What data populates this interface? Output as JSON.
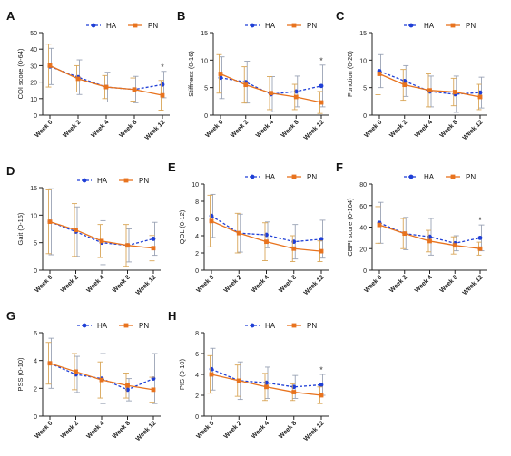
{
  "figure": {
    "legend_entries": [
      "HA",
      "PN"
    ],
    "colors": {
      "HA": "#1f3fd6",
      "PN": "#e8731e",
      "HA_err": "#9aa3b5",
      "PN_err": "#d9a657",
      "axis": "#222222"
    }
  },
  "chart_data": [
    {
      "panel": "A",
      "type": "line",
      "ylabel": "COI score (0-64)",
      "ylim": [
        0,
        50
      ],
      "yticks": [
        0,
        10,
        20,
        30,
        40,
        50
      ],
      "categories": [
        "Week 0",
        "Week 2",
        "Week 4",
        "Week 8",
        "Week 12"
      ],
      "series": [
        {
          "name": "HA",
          "values": [
            29.5,
            23,
            17,
            15.5,
            18.5
          ],
          "err": [
            11,
            10.5,
            9,
            8,
            8
          ]
        },
        {
          "name": "PN",
          "values": [
            30,
            22,
            17,
            15.5,
            12
          ],
          "err": [
            13,
            8,
            7,
            7,
            9
          ]
        }
      ],
      "annotations": [
        {
          "text": "*",
          "category": "Week 12"
        }
      ]
    },
    {
      "panel": "B",
      "type": "line",
      "ylabel": "Stiffness (0-16)",
      "ylim": [
        0,
        15
      ],
      "yticks": [
        0,
        5,
        10,
        15
      ],
      "categories": [
        "Week 0",
        "Week 2",
        "Week 4",
        "Week 8",
        "Week 12"
      ],
      "series": [
        {
          "name": "HA",
          "values": [
            6.8,
            6.0,
            3.8,
            4.3,
            5.3
          ],
          "err": [
            3.8,
            3.8,
            3.2,
            2.8,
            3.8
          ]
        },
        {
          "name": "PN",
          "values": [
            7.5,
            5.5,
            4.0,
            3.3,
            2.3
          ],
          "err": [
            3.5,
            3.3,
            3.0,
            2.3,
            2.0
          ]
        }
      ],
      "annotations": [
        {
          "text": "*",
          "category": "Week 12"
        }
      ]
    },
    {
      "panel": "C",
      "type": "line",
      "ylabel": "Function (0-20)",
      "ylim": [
        0,
        15
      ],
      "yticks": [
        0,
        5,
        10,
        15
      ],
      "categories": [
        "Week 0",
        "Week 2",
        "Week 4",
        "Week 8",
        "Week 12"
      ],
      "series": [
        {
          "name": "HA",
          "values": [
            8.0,
            6.2,
            4.3,
            3.8,
            4.1
          ],
          "err": [
            3.0,
            2.8,
            2.8,
            3.3,
            2.8
          ]
        },
        {
          "name": "PN",
          "values": [
            7.5,
            5.5,
            4.5,
            4.2,
            3.3
          ],
          "err": [
            3.8,
            2.8,
            3.0,
            2.5,
            2.3
          ]
        }
      ]
    },
    {
      "panel": "D",
      "type": "line",
      "ylabel": "Gait (0-16)",
      "ylim": [
        0,
        15
      ],
      "yticks": [
        0,
        5,
        10,
        15
      ],
      "categories": [
        "Week 0",
        "Week 2",
        "Week 4",
        "Week 8",
        "Week 12"
      ],
      "series": [
        {
          "name": "HA",
          "values": [
            8.8,
            7.0,
            5.0,
            4.5,
            5.7
          ],
          "err": [
            6.0,
            4.5,
            4.0,
            3.0,
            3.0
          ]
        },
        {
          "name": "PN",
          "values": [
            8.8,
            7.3,
            5.3,
            4.5,
            4.0
          ],
          "err": [
            5.8,
            4.8,
            3.0,
            3.8,
            2.3
          ]
        }
      ]
    },
    {
      "panel": "E",
      "type": "line",
      "ylabel": "QOL (0-12)",
      "ylim": [
        0,
        10
      ],
      "yticks": [
        0,
        2,
        4,
        6,
        8,
        10
      ],
      "categories": [
        "Week 0",
        "Week 2",
        "Week 4",
        "Week 8",
        "Week 12"
      ],
      "series": [
        {
          "name": "HA",
          "values": [
            6.3,
            4.3,
            4.1,
            3.3,
            3.6
          ],
          "err": [
            2.5,
            2.2,
            1.5,
            2.0,
            2.2
          ]
        },
        {
          "name": "PN",
          "values": [
            5.7,
            4.3,
            3.3,
            2.5,
            2.2
          ],
          "err": [
            3.0,
            2.3,
            2.2,
            1.5,
            1.2
          ]
        }
      ]
    },
    {
      "panel": "F",
      "type": "line",
      "ylabel": "CBPI score (0-104)",
      "ylim": [
        0,
        80
      ],
      "yticks": [
        0,
        20,
        40,
        60,
        80
      ],
      "categories": [
        "Week 0",
        "Week 2",
        "Week 4",
        "Week 8",
        "Week 12"
      ],
      "series": [
        {
          "name": "HA",
          "values": [
            44,
            34,
            31,
            25,
            30
          ],
          "err": [
            19,
            15,
            17,
            7,
            12
          ]
        },
        {
          "name": "PN",
          "values": [
            42,
            34,
            27,
            23,
            20
          ],
          "err": [
            17,
            14,
            10,
            8,
            6
          ]
        }
      ],
      "annotations": [
        {
          "text": "*",
          "category": "Week 12"
        }
      ]
    },
    {
      "panel": "G",
      "type": "line",
      "ylabel": "PSS (0-10)",
      "ylim": [
        0,
        6
      ],
      "yticks": [
        0,
        2,
        4,
        6
      ],
      "categories": [
        "Week 0",
        "Week 2",
        "Week 4",
        "Week 8",
        "Week 12"
      ],
      "series": [
        {
          "name": "HA",
          "values": [
            3.8,
            3.0,
            2.7,
            1.9,
            2.7
          ],
          "err": [
            1.8,
            1.3,
            1.8,
            0.8,
            1.8
          ]
        },
        {
          "name": "PN",
          "values": [
            3.8,
            3.2,
            2.6,
            2.2,
            1.9
          ],
          "err": [
            1.5,
            1.3,
            1.3,
            0.9,
            0.9
          ]
        }
      ]
    },
    {
      "panel": "H",
      "type": "line",
      "ylabel": "PIS (0-10)",
      "ylim": [
        0,
        8
      ],
      "yticks": [
        0,
        2,
        4,
        6,
        8
      ],
      "categories": [
        "Week 0",
        "Week 2",
        "Week 4",
        "Week 8",
        "Week 12"
      ],
      "series": [
        {
          "name": "HA",
          "values": [
            4.5,
            3.4,
            3.2,
            2.8,
            3.0
          ],
          "err": [
            2.0,
            1.8,
            1.5,
            1.1,
            1.0
          ]
        },
        {
          "name": "PN",
          "values": [
            4.0,
            3.4,
            2.8,
            2.3,
            2.0
          ],
          "err": [
            1.8,
            1.5,
            1.3,
            0.8,
            0.8
          ]
        }
      ],
      "annotations": [
        {
          "text": "*",
          "category": "Week 12"
        }
      ]
    }
  ]
}
